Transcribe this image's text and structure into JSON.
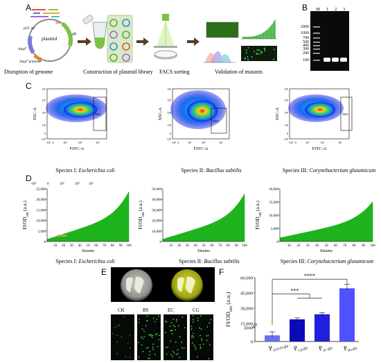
{
  "panels": {
    "A": "A",
    "B": "B",
    "C": "C",
    "D": "D",
    "E": "E",
    "F": "F"
  },
  "panelA": {
    "plasmid_labels": {
      "ori": "pUC ori",
      "plasmid": "plasmid",
      "gfp": "gfp",
      "ampr": "Amp",
      "ampr_sup": "R",
      "promoter": "Amp",
      "promoter_sup": "R",
      "promoter_tail": " promoter"
    },
    "steps": [
      "Disruption of genome",
      "Construction of plasmid library",
      "FACS sorting",
      "Validation of mutants"
    ]
  },
  "panelB": {
    "lanes": [
      "M",
      "1",
      "2",
      "3"
    ],
    "ladder": [
      "2000",
      "1000",
      "700",
      "500",
      "400",
      "300",
      "200",
      "100"
    ]
  },
  "panelC": {
    "ylabel": "SSC-A",
    "xlabel": "FITC-A",
    "gate_label": "Sort",
    "yticks": [
      "10⁶",
      "10⁵",
      "10⁴",
      "10³",
      "0",
      "-10³"
    ],
    "xticks": [
      "-10³",
      "0",
      "10³",
      "10⁴",
      "10⁵"
    ],
    "species": [
      {
        "prefix": "Species I: ",
        "name": "Escherichia coli"
      },
      {
        "prefix": "Species II: ",
        "name": "Bacillus subtilis"
      },
      {
        "prefix": "Species III: ",
        "name": "Corynebacterium glutamicum"
      }
    ]
  },
  "panelD": {
    "ylabel_main": "FI/OD",
    "ylabel_sub": "600",
    "ylabel_tail": " (a.u.)",
    "xlabel": "Strains",
    "stray_ticks": [
      "-10³",
      "0",
      "10³",
      "10⁴",
      "10⁵"
    ],
    "xticks": [
      "10",
      "20",
      "30",
      "40",
      "50",
      "60",
      "70",
      "80",
      "90",
      "100"
    ],
    "yticks_ecoli": [
      "25,000",
      "20,000",
      "15,000",
      "10,000",
      "5,000",
      "0"
    ],
    "yticks_bsub": [
      "50,000",
      "40,000",
      "30,000",
      "20,000",
      "10,000",
      "0"
    ],
    "yticks_cglu": [
      "20,000",
      "15,000",
      "10,000",
      "5,000",
      "0"
    ],
    "species": [
      {
        "prefix": "Species I: ",
        "name": "Escherichia coli"
      },
      {
        "prefix": "Species II: ",
        "name": "Bacillus subtilis"
      },
      {
        "prefix": "Species III: ",
        "name": "Corynebacterium glutamicum"
      }
    ]
  },
  "panelE": {
    "labels": [
      "CK",
      "BS",
      "EC",
      "CG"
    ]
  },
  "panelF": {
    "ylabel_main": "FI/OD",
    "ylabel_sub": "600",
    "ylabel_tail": " (a.u.)",
    "yticks": [
      "60,000",
      "45,000",
      "30,000",
      "15,000",
      "5000",
      "0"
    ],
    "categories": [
      {
        "main": "P",
        "sub": "J23119-gfp"
      },
      {
        "main": "P",
        "sub": "Cg-gfp"
      },
      {
        "main": "P",
        "sub": "Ec-gfp"
      },
      {
        "main": "P",
        "sub": "Bs-gfp"
      }
    ],
    "sig1": "***",
    "sig2": "****"
  },
  "chart_data": [
    {
      "type": "bar",
      "title": "",
      "xlabel": "Strains",
      "ylabel": "FI/OD600 (a.u.)",
      "ylim": [
        0,
        25000
      ],
      "x_range": [
        1,
        100
      ],
      "trend": {
        "start": 1200,
        "end": 23500
      },
      "color": "#1db31d"
    },
    {
      "type": "bar",
      "title": "",
      "xlabel": "Strains",
      "ylabel": "FI/OD600 (a.u.)",
      "ylim": [
        0,
        50000
      ],
      "x_range": [
        1,
        100
      ],
      "trend": {
        "start": 2500,
        "end": 45000
      },
      "color": "#1db31d"
    },
    {
      "type": "bar",
      "title": "",
      "xlabel": "Strains",
      "ylabel": "FI/OD600 (a.u.)",
      "ylim": [
        0,
        20000
      ],
      "x_range": [
        1,
        100
      ],
      "trend": {
        "start": 1500,
        "end": 15000
      },
      "color": "#1db31d"
    },
    {
      "type": "bar",
      "title": "",
      "ylabel": "FI/OD600 (a.u.)",
      "ylim": [
        0,
        60000
      ],
      "categories": [
        "PJ23119-gfp",
        "PCg-gfp",
        "PEc-gfp",
        "PBs-gfp"
      ],
      "values": [
        2200,
        19000,
        24000,
        49500
      ],
      "errors": [
        1300,
        1500,
        1500,
        4000
      ],
      "colors": [
        "#6d6df2",
        "#0a0ab8",
        "#1f1fdc",
        "#5050ff"
      ]
    }
  ]
}
